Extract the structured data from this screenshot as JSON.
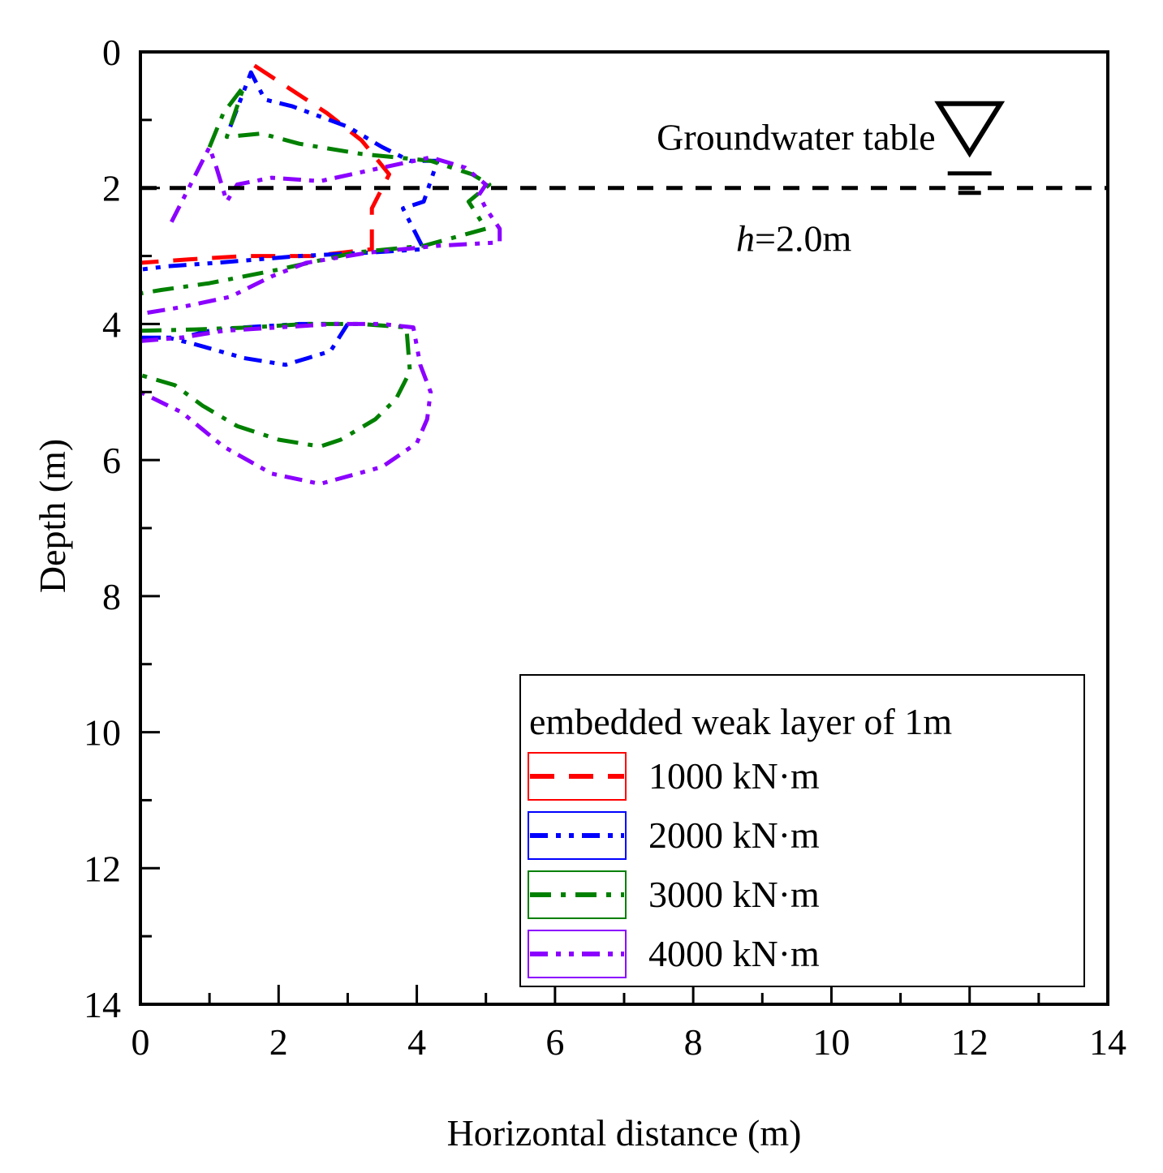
{
  "chart_data": {
    "type": "line",
    "xlabel": "Horizontal distance  (m)",
    "ylabel": "Depth (m)",
    "xlim": [
      0,
      14
    ],
    "ylim": [
      0,
      14
    ],
    "y_inverted": true,
    "xticks": [
      0,
      2,
      4,
      6,
      8,
      10,
      12,
      14
    ],
    "yticks": [
      0,
      2,
      4,
      6,
      8,
      10,
      12,
      14
    ],
    "minor_tick_step": 1,
    "grid": false,
    "legend": {
      "title": "embedded weak layer of 1m",
      "position": "bottom-right"
    },
    "annotations": {
      "groundwater_label": "Groundwater table",
      "groundwater_depth": 2.0,
      "groundwater_x": 12.0,
      "h_symbol": "h",
      "h_value": "=2.0m"
    },
    "series": [
      {
        "name": "1000 kN·m",
        "color": "#ff0000",
        "dash": "long-dash",
        "segments": [
          [
            [
              1.65,
              0.2
            ],
            [
              2.1,
              0.5
            ],
            [
              2.7,
              0.9
            ],
            [
              3.2,
              1.3
            ],
            [
              3.6,
              1.8
            ],
            [
              3.35,
              2.3
            ],
            [
              3.35,
              2.9
            ],
            [
              2.5,
              3.0
            ],
            [
              1.5,
              3.0
            ],
            [
              0.7,
              3.05
            ],
            [
              0.0,
              3.1
            ]
          ]
        ]
      },
      {
        "name": "2000 kN·m",
        "color": "#0000ff",
        "dash": "dash-dot-dot",
        "segments": [
          [
            [
              1.3,
              1.1
            ],
            [
              1.45,
              0.7
            ],
            [
              1.6,
              0.3
            ],
            [
              1.8,
              0.7
            ],
            [
              2.2,
              0.8
            ],
            [
              3.0,
              1.1
            ],
            [
              3.5,
              1.4
            ],
            [
              3.9,
              1.6
            ],
            [
              4.3,
              1.6
            ],
            [
              4.1,
              2.2
            ],
            [
              3.8,
              2.3
            ],
            [
              4.1,
              2.9
            ],
            [
              3.3,
              2.95
            ],
            [
              2.3,
              3.0
            ],
            [
              1.7,
              3.05
            ],
            [
              1.1,
              3.1
            ],
            [
              0.4,
              3.15
            ],
            [
              0.0,
              3.2
            ]
          ],
          [
            [
              0.0,
              4.2
            ],
            [
              0.6,
              4.2
            ],
            [
              1.0,
              4.1
            ],
            [
              1.5,
              4.05
            ],
            [
              2.3,
              4.0
            ],
            [
              3.0,
              4.0
            ],
            [
              2.75,
              4.4
            ],
            [
              2.1,
              4.6
            ],
            [
              1.5,
              4.5
            ],
            [
              0.8,
              4.3
            ],
            [
              0.4,
              4.2
            ],
            [
              0.0,
              4.2
            ]
          ]
        ]
      },
      {
        "name": "3000 kN·m",
        "color": "#008000",
        "dash": "dash-dot",
        "segments": [
          [
            [
              1.0,
              1.4
            ],
            [
              1.2,
              0.9
            ],
            [
              1.5,
              0.5
            ],
            [
              1.25,
              1.25
            ],
            [
              1.75,
              1.2
            ],
            [
              2.3,
              1.35
            ],
            [
              3.2,
              1.5
            ],
            [
              4.2,
              1.6
            ],
            [
              4.8,
              1.8
            ],
            [
              5.05,
              1.95
            ],
            [
              4.75,
              2.2
            ],
            [
              5.0,
              2.6
            ],
            [
              4.1,
              2.85
            ],
            [
              3.1,
              2.95
            ],
            [
              2.0,
              3.2
            ],
            [
              1.0,
              3.4
            ],
            [
              0.3,
              3.5
            ],
            [
              0.0,
              3.55
            ]
          ],
          [
            [
              0.0,
              4.1
            ],
            [
              0.8,
              4.08
            ],
            [
              1.6,
              4.05
            ],
            [
              2.4,
              4.0
            ],
            [
              3.2,
              4.0
            ],
            [
              3.85,
              4.05
            ],
            [
              3.9,
              4.7
            ],
            [
              3.7,
              5.1
            ],
            [
              3.4,
              5.4
            ],
            [
              2.9,
              5.7
            ],
            [
              2.6,
              5.8
            ],
            [
              2.0,
              5.7
            ],
            [
              1.4,
              5.5
            ],
            [
              0.9,
              5.2
            ],
            [
              0.5,
              4.9
            ],
            [
              0.0,
              4.75
            ]
          ]
        ]
      },
      {
        "name": "4000 kN·m",
        "color": "#8b00ff",
        "dash": "dash-dot-dot",
        "segments": [
          [
            [
              0.45,
              2.5
            ],
            [
              0.6,
              2.2
            ],
            [
              0.75,
              1.9
            ],
            [
              1.0,
              1.4
            ],
            [
              1.1,
              1.7
            ],
            [
              1.25,
              2.2
            ],
            [
              1.4,
              1.95
            ],
            [
              1.9,
              1.85
            ],
            [
              2.6,
              1.9
            ],
            [
              3.5,
              1.7
            ],
            [
              4.2,
              1.55
            ],
            [
              4.7,
              1.7
            ],
            [
              5.0,
              1.95
            ],
            [
              4.9,
              2.1
            ],
            [
              5.0,
              2.3
            ],
            [
              5.2,
              2.6
            ],
            [
              5.2,
              2.8
            ],
            [
              4.3,
              2.85
            ],
            [
              3.3,
              2.95
            ],
            [
              2.4,
              3.1
            ],
            [
              1.9,
              3.3
            ],
            [
              1.3,
              3.6
            ],
            [
              0.6,
              3.75
            ],
            [
              0.0,
              3.85
            ]
          ],
          [
            [
              0.0,
              4.25
            ],
            [
              0.6,
              4.2
            ],
            [
              1.2,
              4.1
            ],
            [
              2.0,
              4.05
            ],
            [
              2.8,
              4.0
            ],
            [
              3.5,
              4.0
            ],
            [
              3.95,
              4.05
            ],
            [
              4.05,
              4.6
            ],
            [
              4.2,
              5.0
            ],
            [
              4.15,
              5.4
            ],
            [
              4.0,
              5.75
            ],
            [
              3.5,
              6.1
            ],
            [
              2.6,
              6.35
            ],
            [
              1.9,
              6.2
            ],
            [
              1.2,
              5.8
            ],
            [
              0.6,
              5.3
            ],
            [
              0.0,
              5.0
            ]
          ]
        ]
      }
    ]
  }
}
